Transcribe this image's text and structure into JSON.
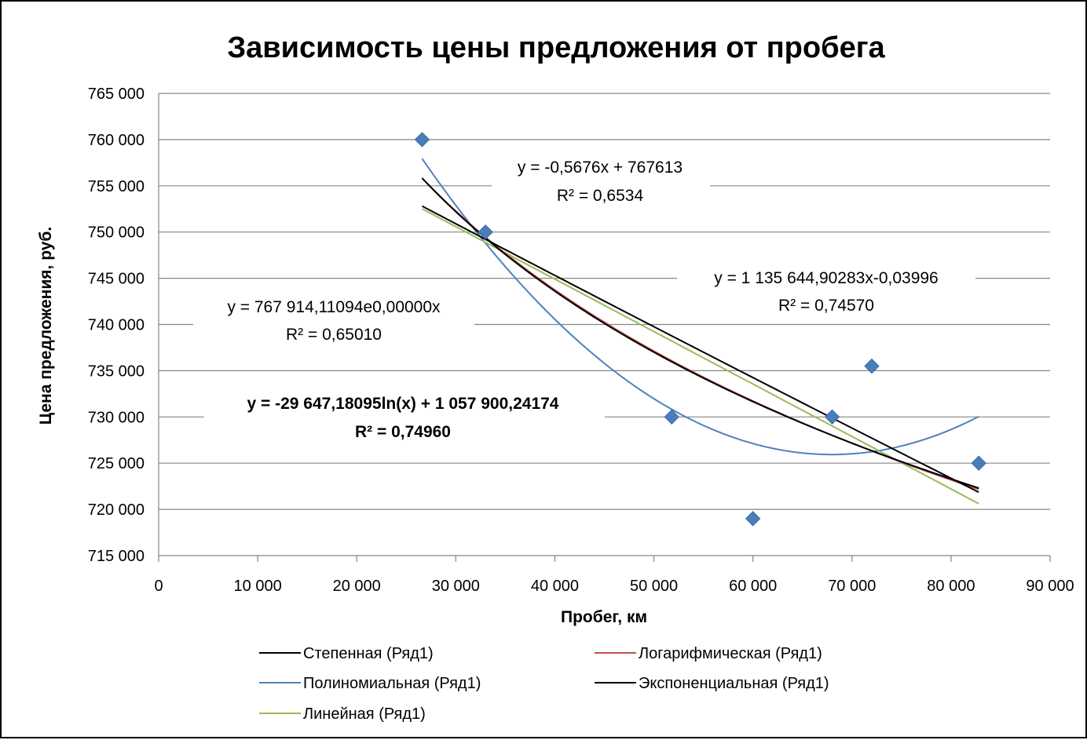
{
  "chart_data": {
    "type": "scatter",
    "title": "Зависимость цены предложения от пробега",
    "xlabel": "Пробег, км",
    "ylabel": "Цена предложения, руб.",
    "xlim": [
      0,
      90000
    ],
    "ylim": [
      715000,
      765000
    ],
    "x_ticks": [
      0,
      10000,
      20000,
      30000,
      40000,
      50000,
      60000,
      70000,
      80000,
      90000
    ],
    "y_ticks": [
      715000,
      720000,
      725000,
      730000,
      735000,
      740000,
      745000,
      750000,
      755000,
      760000,
      765000
    ],
    "x_tick_labels": [
      "0",
      "10 000",
      "20 000",
      "30 000",
      "40 000",
      "50 000",
      "60 000",
      "70 000",
      "80 000",
      "90 000"
    ],
    "y_tick_labels": [
      "715 000",
      "720 000",
      "725 000",
      "730 000",
      "735 000",
      "740 000",
      "745 000",
      "750 000",
      "755 000",
      "760 000",
      "765 000"
    ],
    "grid": "horizontal",
    "legend_position": "bottom",
    "point_color": "#4a7ebb",
    "series": [
      {
        "name": "Ряд1",
        "points": [
          {
            "x": 26600,
            "y": 760000
          },
          {
            "x": 33000,
            "y": 750000
          },
          {
            "x": 51800,
            "y": 730000
          },
          {
            "x": 60000,
            "y": 719000
          },
          {
            "x": 68000,
            "y": 730000
          },
          {
            "x": 72000,
            "y": 735500
          },
          {
            "x": 82800,
            "y": 725000
          }
        ]
      }
    ],
    "trendlines": [
      {
        "name": "Степенная (Ряд1)",
        "kind": "power",
        "a": 1135644.90283,
        "b": -0.03996,
        "color": "#000000"
      },
      {
        "name": "Логарифмическая (Ряд1)",
        "kind": "log",
        "a": -29647.18095,
        "b": 1057900.24174,
        "color": "#c0504d"
      },
      {
        "name": "Полиномиальная (Ряд1)",
        "kind": "poly2",
        "a": 1.87e-05,
        "b": -2.542,
        "c": 812320,
        "color": "#4f81bd"
      },
      {
        "name": "Экспоненциальная (Ряд1)",
        "kind": "exp",
        "a": 767914.11094,
        "b": -7.47e-07,
        "color": "#000000"
      },
      {
        "name": "Линейная (Ряд1)",
        "kind": "linear",
        "a": -0.5676,
        "b": 767613,
        "color": "#9bbb59"
      }
    ],
    "x_range_fit": [
      26600,
      82800
    ],
    "equations": [
      {
        "line1": "y = -0,5676x + 767613",
        "line2": "R² = 0,6534",
        "bold": false
      },
      {
        "line1": "y = 1 135 644,90283x-0,03996",
        "line2": "R² = 0,74570",
        "bold": false
      },
      {
        "line1": "y = 767 914,11094e0,00000x",
        "line2": "R² = 0,65010",
        "bold": false
      },
      {
        "line1": "y = -29 647,18095ln(x) + 1 057 900,24174",
        "line2": "R² = 0,74960",
        "bold": true
      }
    ],
    "legend": [
      "Степенная (Ряд1)",
      "Логарифмическая (Ряд1)",
      "Полиномиальная (Ряд1)",
      "Экспоненциальная (Ряд1)",
      "Линейная (Ряд1)"
    ]
  }
}
